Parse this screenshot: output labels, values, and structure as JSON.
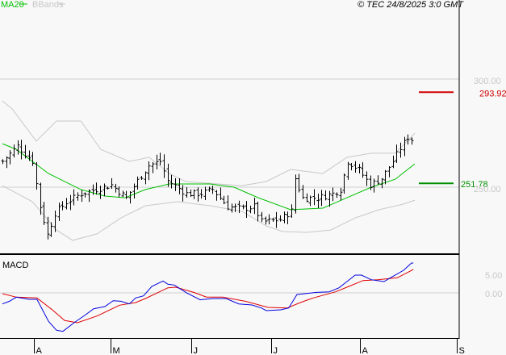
{
  "header": {
    "legend": [
      {
        "label": "MA20",
        "color": "#00c000"
      },
      {
        "label": "BBands",
        "color": "#c8c8c8"
      }
    ],
    "copyright": "© TEC 24/8/2025 3:0 GMT"
  },
  "chart_data": [
    {
      "type": "ohlc",
      "title": "",
      "y_ticks": [
        {
          "value": 300,
          "label": "300.00"
        },
        {
          "value": 250,
          "label": "250.00"
        }
      ],
      "levels": [
        {
          "value": 293.92,
          "label": "293.92",
          "color": "#d00000"
        },
        {
          "value": 251.78,
          "label": "251.78",
          "color": "#009000"
        }
      ],
      "bar_count": 110,
      "close_keyframes": [
        [
          0,
          262
        ],
        [
          4,
          269
        ],
        [
          8,
          262
        ],
        [
          10,
          241
        ],
        [
          12,
          228
        ],
        [
          14,
          238
        ],
        [
          17,
          243
        ],
        [
          21,
          247
        ],
        [
          25,
          249
        ],
        [
          29,
          251
        ],
        [
          33,
          245
        ],
        [
          36,
          253
        ],
        [
          39,
          260
        ],
        [
          42,
          262
        ],
        [
          44,
          253
        ],
        [
          49,
          247
        ],
        [
          53,
          247
        ],
        [
          56,
          249
        ],
        [
          60,
          241
        ],
        [
          64,
          240
        ],
        [
          67,
          241
        ],
        [
          69,
          234
        ],
        [
          74,
          235
        ],
        [
          77,
          239
        ],
        [
          78,
          254
        ],
        [
          80,
          245
        ],
        [
          84,
          245
        ],
        [
          88,
          247
        ],
        [
          90,
          249
        ],
        [
          92,
          262
        ],
        [
          95,
          258
        ],
        [
          98,
          251
        ],
        [
          101,
          254
        ],
        [
          104,
          262
        ],
        [
          106,
          268
        ],
        [
          108,
          273
        ],
        [
          109,
          272
        ]
      ],
      "ma20": [
        [
          0,
          270.1
        ],
        [
          3.7,
          267.5
        ],
        [
          12.3,
          256.3
        ],
        [
          20.9,
          248.9
        ],
        [
          27.3,
          245.9
        ],
        [
          32.7,
          245.1
        ],
        [
          38.1,
          248.9
        ],
        [
          44.5,
          251.5
        ],
        [
          55.3,
          251.5
        ],
        [
          61.7,
          250
        ],
        [
          68.2,
          245.1
        ],
        [
          76.8,
          239.6
        ],
        [
          85.4,
          240.3
        ],
        [
          91.8,
          245.1
        ],
        [
          98.3,
          250
        ],
        [
          104.7,
          253.7
        ],
        [
          109.9,
          260.8
        ]
      ],
      "bb_upper": [
        [
          0,
          289.9
        ],
        [
          2.6,
          286.2
        ],
        [
          9,
          271.3
        ],
        [
          14.4,
          280.6
        ],
        [
          20.9,
          280.6
        ],
        [
          26.2,
          267.5
        ],
        [
          33.8,
          261.9
        ],
        [
          39.1,
          263.8
        ],
        [
          44.5,
          256.3
        ],
        [
          48.8,
          252.6
        ],
        [
          57.4,
          251.5
        ],
        [
          63.9,
          250.7
        ],
        [
          70.3,
          252.6
        ],
        [
          76.8,
          258.2
        ],
        [
          85.4,
          256.3
        ],
        [
          91.8,
          263.8
        ],
        [
          98.3,
          265.7
        ],
        [
          104.7,
          265.7
        ],
        [
          109.9,
          275
        ]
      ],
      "bb_lower": [
        [
          0,
          250.7
        ],
        [
          8,
          243.3
        ],
        [
          14.4,
          230.2
        ],
        [
          18.7,
          225.4
        ],
        [
          25.2,
          228.4
        ],
        [
          31.6,
          235.8
        ],
        [
          38.1,
          241.4
        ],
        [
          46.7,
          243.3
        ],
        [
          55.3,
          241.4
        ],
        [
          63.9,
          238.8
        ],
        [
          70.3,
          232.1
        ],
        [
          74.6,
          229.5
        ],
        [
          81.1,
          229.1
        ],
        [
          87.5,
          230.2
        ],
        [
          94,
          235.8
        ],
        [
          100.4,
          239.6
        ],
        [
          106.9,
          242.2
        ],
        [
          109.9,
          244
        ]
      ]
    },
    {
      "type": "line",
      "title": "MACD",
      "y_ticks": [
        {
          "value": 5,
          "label": "5.00"
        },
        {
          "value": 0,
          "label": "0.00"
        }
      ],
      "series": [
        {
          "name": "MACD",
          "color": "#0000e0",
          "points": [
            [
              0,
              -2.97
            ],
            [
              1.9,
              -2.25
            ],
            [
              3.7,
              -1.16
            ],
            [
              7.1,
              -1.74
            ],
            [
              9.2,
              -1.74
            ],
            [
              12.3,
              -7.68
            ],
            [
              14.4,
              -10.07
            ],
            [
              16.1,
              -10.36
            ],
            [
              19.1,
              -8.04
            ],
            [
              22.2,
              -5.87
            ],
            [
              24.3,
              -4.28
            ],
            [
              27.3,
              -3.7
            ],
            [
              29.5,
              -2.1
            ],
            [
              31.6,
              -2.25
            ],
            [
              33.8,
              -2.97
            ],
            [
              35.5,
              -1.38
            ],
            [
              37.6,
              -0.8
            ],
            [
              39.8,
              1.74
            ],
            [
              42.8,
              3.19
            ],
            [
              44.1,
              2.32
            ],
            [
              45.8,
              2.1
            ],
            [
              49.2,
              -0.07
            ],
            [
              52.7,
              -1.88
            ],
            [
              56.1,
              -1.52
            ],
            [
              59.6,
              -1.52
            ],
            [
              63,
              -2.97
            ],
            [
              66.5,
              -3.26
            ],
            [
              69,
              -4.06
            ],
            [
              70.3,
              -4.78
            ],
            [
              74.2,
              -4.57
            ],
            [
              76.3,
              -4.06
            ],
            [
              78.5,
              -0.43
            ],
            [
              83.7,
              0.14
            ],
            [
              87.1,
              0.29
            ],
            [
              89.7,
              1.38
            ],
            [
              91.8,
              3.04
            ],
            [
              94,
              4.78
            ],
            [
              95.7,
              4.78
            ],
            [
              98.3,
              3.55
            ],
            [
              101.7,
              3.04
            ],
            [
              103.4,
              4.06
            ],
            [
              106.9,
              6.09
            ],
            [
              109,
              8.04
            ],
            [
              109.5,
              8.04
            ]
          ]
        },
        {
          "name": "Signal",
          "color": "#e00000",
          "points": [
            [
              0,
              -0.22
            ],
            [
              3.7,
              -1.16
            ],
            [
              9.2,
              -1.38
            ],
            [
              13.1,
              -4.42
            ],
            [
              16.6,
              -7.46
            ],
            [
              20,
              -8.04
            ],
            [
              25.2,
              -6.23
            ],
            [
              31.2,
              -3.33
            ],
            [
              35.5,
              -2.61
            ],
            [
              38.1,
              -1.52
            ],
            [
              44.1,
              1.38
            ],
            [
              46.2,
              1.52
            ],
            [
              51,
              0.14
            ],
            [
              54.4,
              -1.16
            ],
            [
              58.7,
              -1.16
            ],
            [
              64.7,
              -2.25
            ],
            [
              70.8,
              -3.91
            ],
            [
              75.9,
              -4.06
            ],
            [
              79.4,
              -2.61
            ],
            [
              82.8,
              -1.38
            ],
            [
              88.8,
              0.29
            ],
            [
              92.3,
              1.74
            ],
            [
              96.1,
              3.33
            ],
            [
              100,
              3.55
            ],
            [
              105.2,
              4.06
            ],
            [
              109.5,
              6.3
            ]
          ]
        }
      ]
    }
  ],
  "x_axis": {
    "months": [
      {
        "label": "A",
        "index": 8.4
      },
      {
        "label": "M",
        "index": 28.8
      },
      {
        "label": "J",
        "index": 50.3
      },
      {
        "label": "J",
        "index": 71.6
      },
      {
        "label": "A",
        "index": 95.3
      },
      {
        "label": "S",
        "index": 121
      }
    ]
  }
}
